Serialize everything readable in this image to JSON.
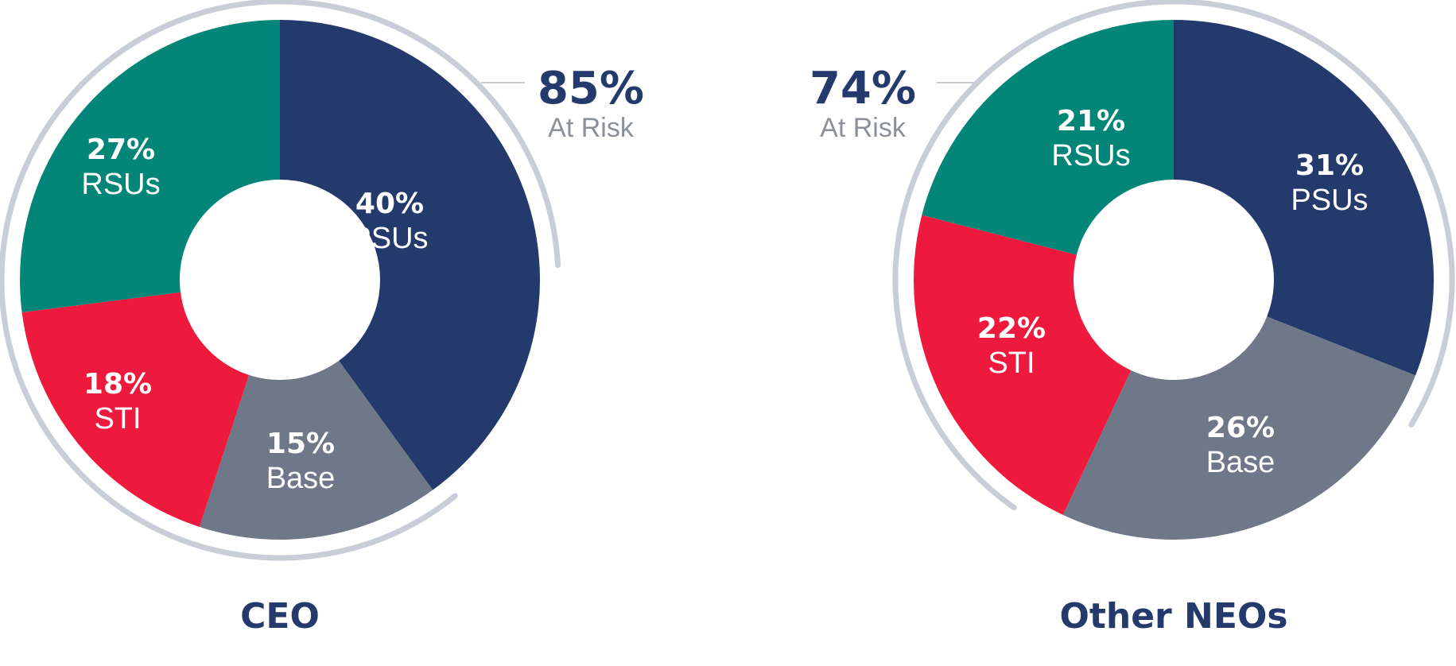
{
  "colors": {
    "PSUs": "#243a6c",
    "Base": "#6e7888",
    "STI": "#ee1a3d",
    "RSUs": "#038677",
    "arc": "#c8cdd8",
    "accent": "#243a6c",
    "muted": "#8c9099"
  },
  "chart_data": [
    {
      "type": "pie",
      "title": "CEO",
      "at_risk": {
        "value": "85%",
        "label": "At Risk"
      },
      "slices": [
        {
          "name": "PSUs",
          "value": 40,
          "label": "40%"
        },
        {
          "name": "Base",
          "value": 15,
          "label": "15%"
        },
        {
          "name": "STI",
          "value": 18,
          "label": "18%"
        },
        {
          "name": "RSUs",
          "value": 27,
          "label": "27%"
        }
      ]
    },
    {
      "type": "pie",
      "title": "Other NEOs",
      "at_risk": {
        "value": "74%",
        "label": "At Risk"
      },
      "slices": [
        {
          "name": "PSUs",
          "value": 31,
          "label": "31%"
        },
        {
          "name": "Base",
          "value": 26,
          "label": "26%"
        },
        {
          "name": "STI",
          "value": 22,
          "label": "22%"
        },
        {
          "name": "RSUs",
          "value": 21,
          "label": "21%"
        }
      ]
    }
  ]
}
